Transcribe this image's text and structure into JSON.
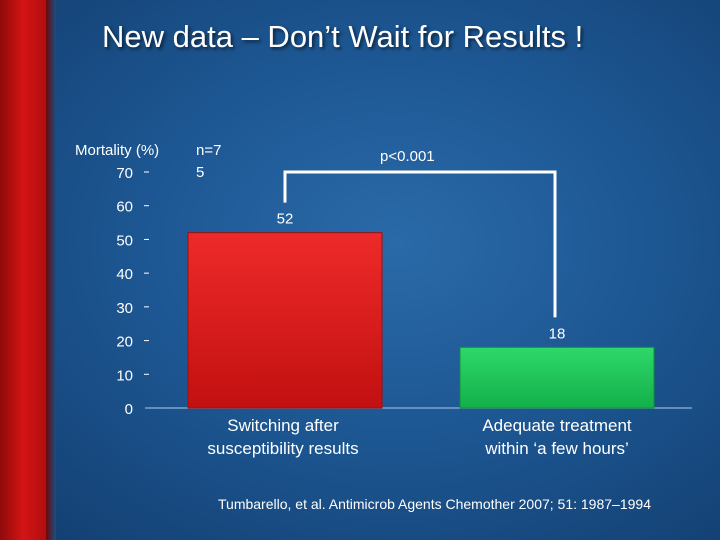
{
  "slide": {
    "title": "New data – Don’t Wait for Results !",
    "citation": "Tumbarello, et al. Antimicrob Agents Chemother 2007; 51: 1987–1994"
  },
  "chart_data": {
    "type": "bar",
    "ylabel": "Mortality (%)",
    "n_label": "n=75",
    "significance": "p<0.001",
    "categories": [
      "Switching after susceptibility results",
      "Adequate treatment within ‘a few hours’"
    ],
    "category_lines": [
      [
        "Switching after",
        "susceptibility results"
      ],
      [
        "Adequate treatment",
        "within ‘a few hours’"
      ]
    ],
    "values": [
      52,
      18
    ],
    "value_labels": [
      "52",
      "18"
    ],
    "colors": [
      "#d81818",
      "#1ec45a"
    ],
    "ylim": [
      0,
      70
    ],
    "yticks": [
      0,
      10,
      20,
      30,
      40,
      50,
      60,
      70
    ],
    "grid": false
  }
}
